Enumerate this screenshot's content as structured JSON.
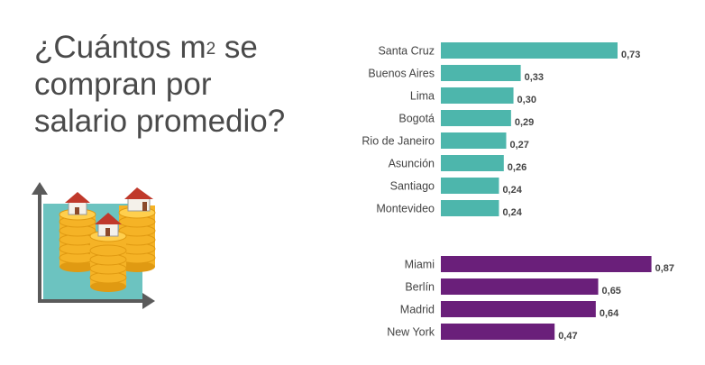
{
  "title": {
    "line1_before_sup": "¿Cuántos m",
    "sup": "2",
    "line1_after_sup": " se",
    "line2": "compran por",
    "line3": "salario promedio?"
  },
  "illustration": {
    "icon": "houses-on-coin-stacks-graph-icon",
    "colors": {
      "panel": "#6cc3c0",
      "axis": "#5a5a5a",
      "coin": "#f5b326",
      "coin_edge": "#e09a12",
      "roof": "#c0392b"
    }
  },
  "chart_data": [
    {
      "type": "bar",
      "orientation": "horizontal",
      "color": "#4db6ac",
      "categories": [
        "Santa Cruz",
        "Buenos Aires",
        "Lima",
        "Bogotá",
        "Rio de Janeiro",
        "Asunción",
        "Santiago",
        "Montevideo"
      ],
      "values": [
        0.73,
        0.33,
        0.3,
        0.29,
        0.27,
        0.26,
        0.24,
        0.24
      ],
      "value_labels": [
        "0,73",
        "0,33",
        "0,30",
        "0,29",
        "0,27",
        "0,26",
        "0,24",
        "0,24"
      ]
    },
    {
      "type": "bar",
      "orientation": "horizontal",
      "color": "#6a1f7a",
      "categories": [
        "Miami",
        "Berlín",
        "Madrid",
        "New York"
      ],
      "values": [
        0.87,
        0.65,
        0.64,
        0.47
      ],
      "value_labels": [
        "0,87",
        "0,65",
        "0,64",
        "0,47"
      ]
    }
  ]
}
